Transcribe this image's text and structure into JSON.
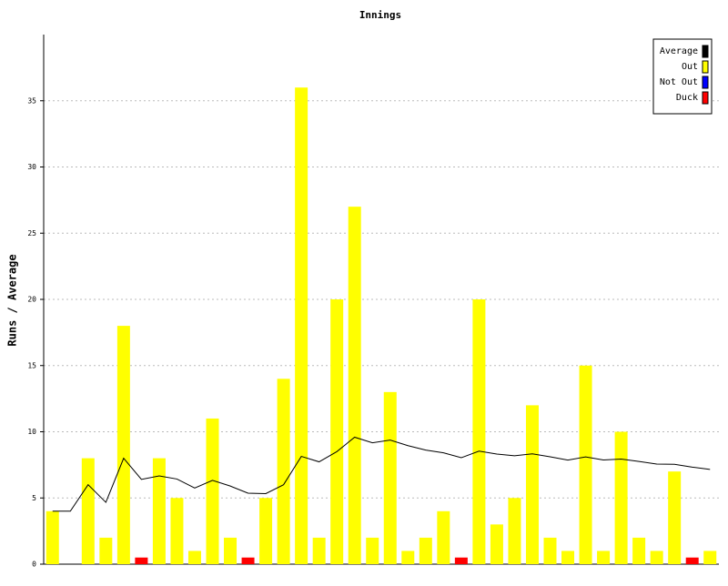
{
  "chart_data": {
    "type": "bar",
    "title": "Innings",
    "ylabel": "Runs / Average",
    "ylim": [
      0,
      40
    ],
    "yticks": [
      0,
      5,
      10,
      15,
      20,
      25,
      30,
      35
    ],
    "grid": true,
    "legend": "top-right",
    "series": [
      {
        "name": "Average",
        "color": "#000000",
        "kind": "line",
        "values": [
          4,
          4,
          6,
          4.67,
          8,
          6.4,
          6.67,
          6.43,
          5.75,
          6.33,
          5.9,
          5.36,
          5.33,
          6,
          8.14,
          7.73,
          8.5,
          9.59,
          9.17,
          9.37,
          8.95,
          8.62,
          8.41,
          8.04,
          8.54,
          8.32,
          8.19,
          8.33,
          8.11,
          7.86,
          8.1,
          7.87,
          7.94,
          7.76,
          7.56,
          7.54,
          7.33,
          7.16
        ]
      },
      {
        "name": "Out",
        "color": "#ffff00",
        "kind": "bar",
        "values": [
          4,
          null,
          8,
          2,
          18,
          null,
          8,
          5,
          1,
          11,
          2,
          null,
          5,
          14,
          36,
          2,
          20,
          27,
          2,
          13,
          1,
          2,
          4,
          null,
          20,
          3,
          5,
          12,
          2,
          1,
          15,
          1,
          10,
          2,
          1,
          7,
          null,
          1
        ]
      },
      {
        "name": "Not Out",
        "color": "#0000ff",
        "kind": "bar",
        "values": [
          null,
          0,
          null,
          null,
          null,
          null,
          null,
          null,
          null,
          null,
          null,
          null,
          null,
          null,
          null,
          null,
          null,
          null,
          null,
          null,
          null,
          null,
          null,
          null,
          null,
          null,
          null,
          null,
          null,
          null,
          null,
          null,
          null,
          null,
          null,
          null,
          null,
          null
        ]
      },
      {
        "name": "Duck",
        "color": "#ff0000",
        "kind": "bar",
        "values": [
          null,
          null,
          null,
          null,
          null,
          0.5,
          null,
          null,
          null,
          null,
          null,
          0.5,
          null,
          null,
          null,
          null,
          null,
          null,
          null,
          null,
          null,
          null,
          null,
          0.5,
          null,
          null,
          null,
          null,
          null,
          null,
          null,
          null,
          null,
          null,
          null,
          null,
          0.5,
          null
        ]
      }
    ]
  }
}
